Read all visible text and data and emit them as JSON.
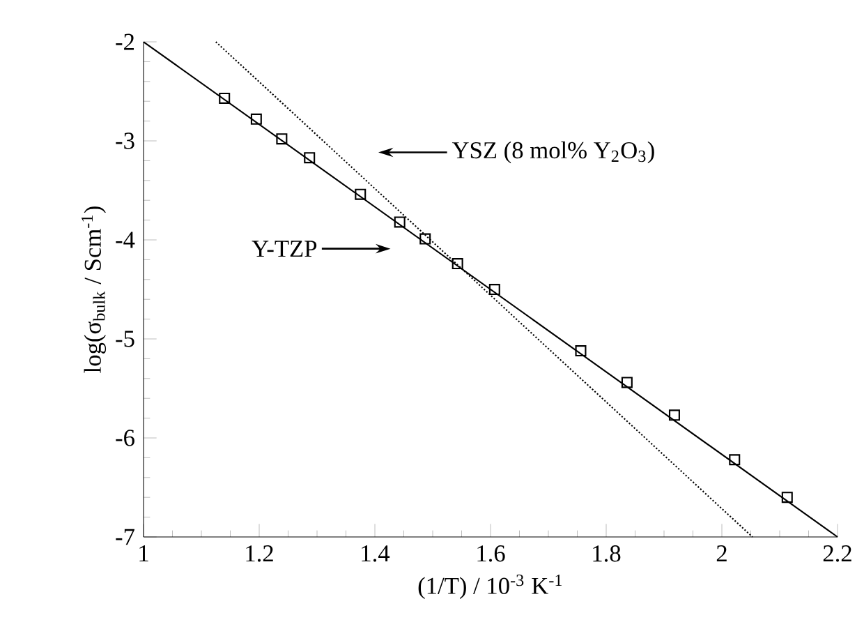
{
  "chart_data": {
    "type": "scatter",
    "xlabel": "(1/T) / 10$^{-3}$ K$^{-1}$",
    "ylabel": "log(σ$_{bulk}$ / Scm$^{-1}$)",
    "xlim": [
      1,
      2.2
    ],
    "ylim": [
      -7,
      -2
    ],
    "xticks": [
      1,
      1.2,
      1.4,
      1.6,
      1.8,
      2,
      2.2
    ],
    "yticks": [
      -7,
      -6,
      -5,
      -4,
      -3,
      -2
    ],
    "grid": false,
    "series": [
      {
        "type": "scatter",
        "marker": "square",
        "color": "#000000",
        "x": [
          1.14,
          1.195,
          1.239,
          1.287,
          1.375,
          1.443,
          1.487,
          1.543,
          1.607,
          1.756,
          1.836,
          1.918,
          2.022,
          2.113
        ],
        "values": [
          -2.57,
          -2.78,
          -2.98,
          -3.17,
          -3.54,
          -3.82,
          -3.99,
          -4.24,
          -4.5,
          -5.12,
          -5.44,
          -5.77,
          -6.22,
          -6.6
        ]
      },
      {
        "type": "line",
        "line_style": "solid",
        "color": "#000000",
        "x": [
          1,
          2.2
        ],
        "values": [
          -2,
          -7
        ]
      },
      {
        "type": "line",
        "line_style": "dotted",
        "color": "#000000",
        "x": [
          1.125,
          2.053
        ],
        "values": [
          -2,
          -7
        ]
      }
    ],
    "annotations": [
      "YSZ (8 mol% Y$_{2}$O$_{3}$)",
      "Y-TZP"
    ]
  }
}
